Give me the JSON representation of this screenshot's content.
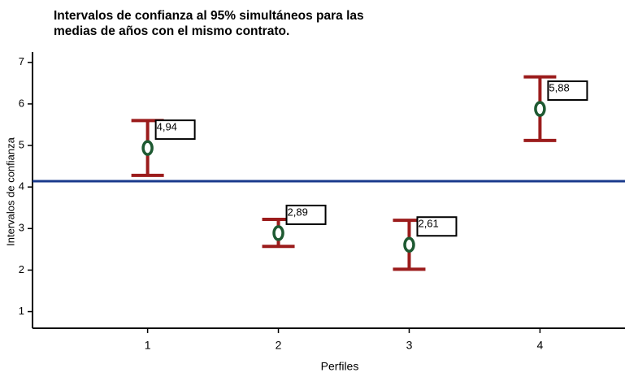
{
  "chart_data": {
    "type": "errorbar",
    "title": [
      "Intervalos de confianza al 95% simultáneos para las",
      "medias de años con el mismo contrato."
    ],
    "xlabel": "Perfiles",
    "ylabel": "Intervalos de confianza",
    "x": [
      1,
      2,
      3,
      4
    ],
    "values": [
      4.94,
      2.89,
      2.61,
      5.88
    ],
    "value_labels": [
      "4,94",
      "2,89",
      "2,61",
      "5,88"
    ],
    "lower": [
      4.28,
      2.57,
      2.02,
      5.12
    ],
    "upper": [
      5.6,
      3.22,
      3.2,
      6.65
    ],
    "reference_line": 4.14,
    "bar_color": "#9b1c1c",
    "marker_color": "#1e5a32",
    "reference_color": "#1a3a8c",
    "xlim": [
      0.12,
      4.65
    ],
    "xticks": [
      1,
      2,
      3,
      4
    ],
    "ylim": [
      0.6,
      7.25
    ],
    "yticks": [
      1,
      2,
      3,
      4,
      5,
      6,
      7
    ]
  }
}
